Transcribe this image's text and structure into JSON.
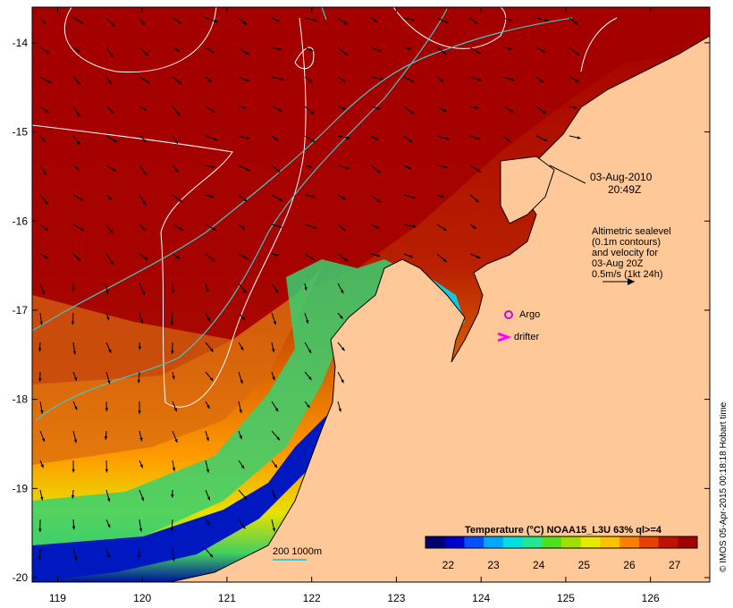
{
  "map": {
    "lon_ticks": [
      "119",
      "120",
      "121",
      "122",
      "123",
      "124",
      "125",
      "126"
    ],
    "lat_ticks": [
      "-14",
      "-15",
      "-16",
      "-17",
      "-18",
      "-19",
      "-20"
    ],
    "lon_range": [
      118.7,
      126.7
    ],
    "lat_range": [
      -20.05,
      -13.6
    ]
  },
  "annotation": {
    "date": "03-Aug-2010",
    "time": "20:49Z",
    "altimetry_lines": [
      "Altimetric sealevel",
      "(0.1m contours)",
      "and velocity for",
      "03-Aug 20Z",
      "0.5m/s (1kt 24h)"
    ]
  },
  "legend": {
    "argo_label": "Argo",
    "drifter_label": "drifter",
    "bathy_label": "200  1000m",
    "argo_color": "#d400d4",
    "drifter_color": "#ff00ff",
    "bathy_color": "#40c8c8"
  },
  "colorbar": {
    "title": "Temperature (°C) NOAA15_L3U 63% ql>=4",
    "ticks": [
      "22",
      "23",
      "24",
      "25",
      "26",
      "27"
    ],
    "range": [
      21.5,
      27.5
    ],
    "colors": [
      "#00006e",
      "#0000cc",
      "#0050ff",
      "#00a8ff",
      "#00e0e0",
      "#20e890",
      "#50e020",
      "#a0e000",
      "#e8e800",
      "#ffc000",
      "#ff8000",
      "#e84000",
      "#c01000",
      "#a00000"
    ]
  },
  "credit": "© IMOS 05-Apr-2015 00:18:18 Hobart time",
  "colors": {
    "land": "#fec898",
    "frame": "#000000",
    "warm_sea": "#a40000",
    "contour": "#ffffff"
  }
}
